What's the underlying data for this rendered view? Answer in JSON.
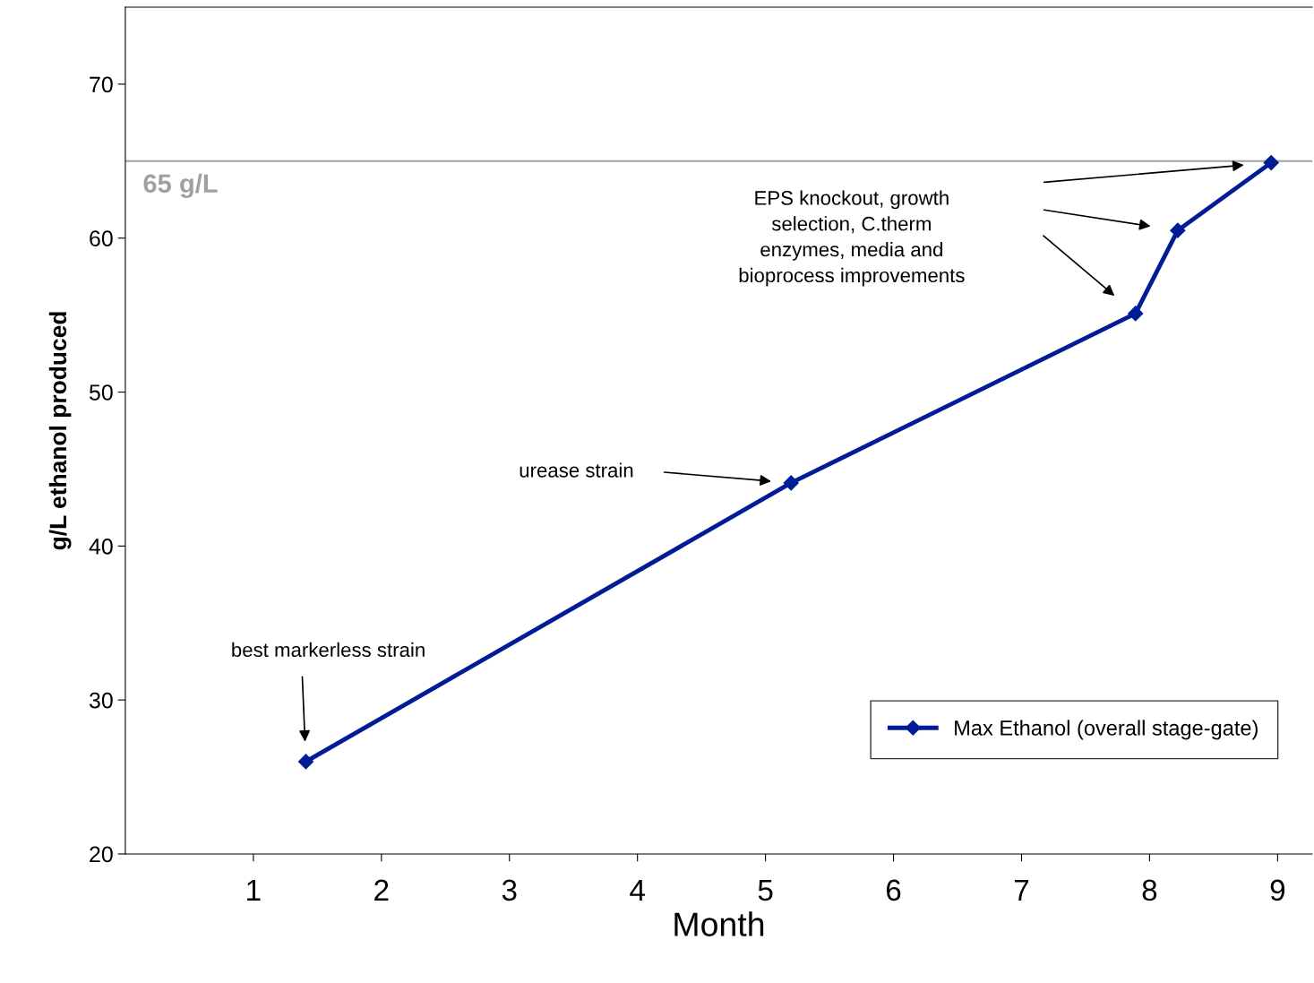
{
  "chart_data": {
    "type": "line",
    "xlabel": "Month",
    "ylabel": "g/L ethanol produced",
    "x": [
      1.41,
      5.2,
      7.89,
      8.22,
      8.95
    ],
    "series": [
      {
        "name": "Max Ethanol (overall stage-gate)",
        "color": "#001c96",
        "values": [
          26.0,
          44.1,
          55.1,
          60.5,
          64.9
        ]
      }
    ],
    "xlim": [
      0,
      9.27
    ],
    "xticks": [
      1,
      2,
      3,
      4,
      5,
      6,
      7,
      8,
      9
    ],
    "ylim": [
      20,
      75
    ],
    "yticks": [
      20,
      30,
      40,
      50,
      60,
      70
    ],
    "ref_lines": [
      {
        "axis": "y",
        "value": 65,
        "label": "65 g/L",
        "color": "#a0a0a0"
      }
    ],
    "annotations": [
      "best markerless strain",
      "urease strain",
      "EPS knockout, growth\nselection, C.therm\nenzymes, media and\nbioprocess improvements"
    ],
    "marker": "diamond",
    "line_style": "solid",
    "legend": "bottom right",
    "grid": false
  }
}
